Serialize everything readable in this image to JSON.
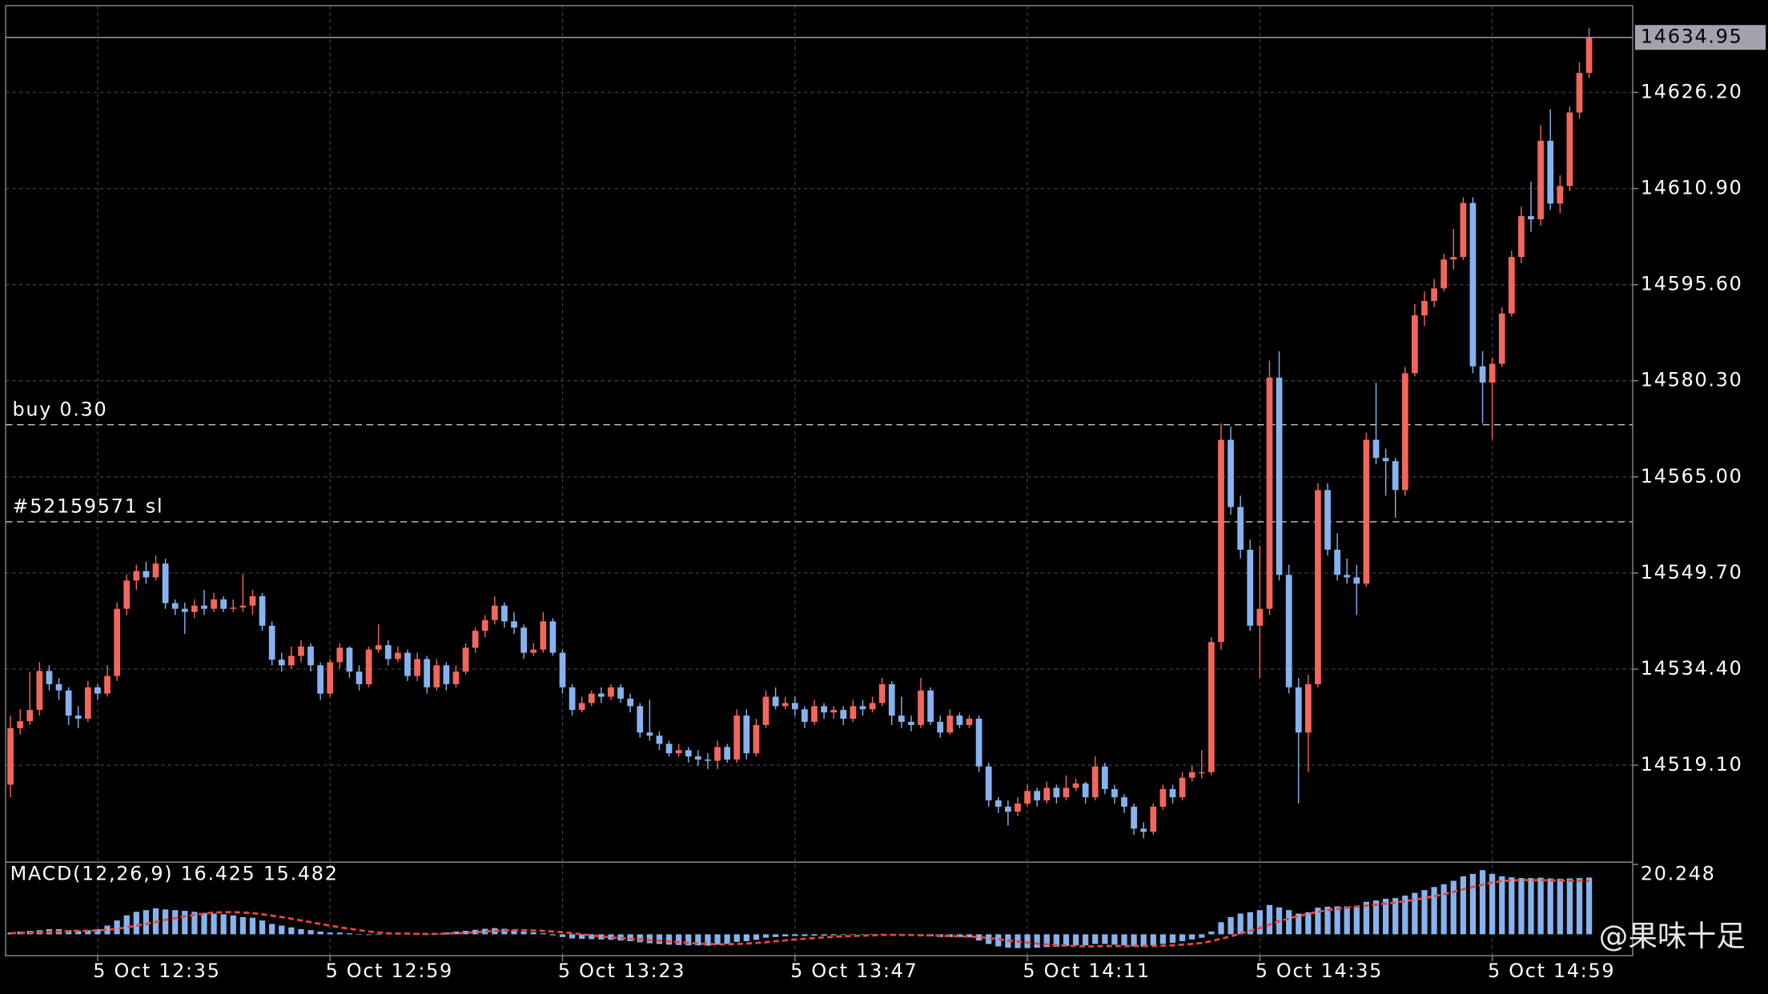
{
  "chart_data": {
    "type": "candlestick",
    "up_color": "#f2665c",
    "down_color": "#86b3ee",
    "grid": true,
    "xlim": [
      -0.5,
      167.5
    ],
    "xticks": [
      {
        "value": 9,
        "label": "5 Oct 12:35"
      },
      {
        "value": 33,
        "label": "5 Oct 12:59"
      },
      {
        "value": 57,
        "label": "5 Oct 13:23"
      },
      {
        "value": 81,
        "label": "5 Oct 13:47"
      },
      {
        "value": 105,
        "label": "5 Oct 14:11"
      },
      {
        "value": 129,
        "label": "5 Oct 14:35"
      },
      {
        "value": 153,
        "label": "5 Oct 14:59"
      }
    ],
    "ylim": [
      14503.67,
      14640.01
    ],
    "yticks": [
      {
        "value": 14519.1,
        "label": "14519.10"
      },
      {
        "value": 14534.4,
        "label": "14534.40"
      },
      {
        "value": 14549.7,
        "label": "14549.70"
      },
      {
        "value": 14565,
        "label": "14565.00"
      },
      {
        "value": 14580.3,
        "label": "14580.30"
      },
      {
        "value": 14595.6,
        "label": "14595.60"
      },
      {
        "value": 14610.9,
        "label": "14610.90"
      },
      {
        "value": 14626.2,
        "label": "14626.20"
      }
    ],
    "levels": [
      {
        "label": "buy 0.30",
        "value": 14573.3
      },
      {
        "label": "#52159571 sl",
        "value": 14557.85
      }
    ],
    "ohlc": [
      [
        14516.0,
        14527.0,
        14514.0,
        14525.0
      ],
      [
        14525.0,
        14528.0,
        14524.0,
        14526.1
      ],
      [
        14526.1,
        14534.0,
        14525.5,
        14527.9
      ],
      [
        14527.9,
        14535.5,
        14527.0,
        14534.1
      ],
      [
        14534.1,
        14535.0,
        14531.0,
        14532.0
      ],
      [
        14532.0,
        14533.0,
        14529.5,
        14531.0
      ],
      [
        14531.0,
        14531.5,
        14525.5,
        14527.0
      ],
      [
        14527.0,
        14528.5,
        14525.0,
        14526.5
      ],
      [
        14526.5,
        14532.5,
        14526.0,
        14531.5
      ],
      [
        14531.5,
        14532.0,
        14529.5,
        14530.5
      ],
      [
        14530.5,
        14535.0,
        14530.0,
        14533.3
      ],
      [
        14533.3,
        14545.0,
        14532.5,
        14544.0
      ],
      [
        14544.0,
        14549.5,
        14543.0,
        14548.5
      ],
      [
        14548.5,
        14551.0,
        14547.0,
        14550.0
      ],
      [
        14550.0,
        14551.5,
        14548.0,
        14549.0
      ],
      [
        14549.0,
        14552.5,
        14548.5,
        14551.2
      ],
      [
        14551.2,
        14552.0,
        14544.0,
        14544.9
      ],
      [
        14544.9,
        14545.5,
        14543.0,
        14544.0
      ],
      [
        14544.0,
        14545.0,
        14540.0,
        14543.5
      ],
      [
        14543.5,
        14545.5,
        14542.5,
        14544.5
      ],
      [
        14544.5,
        14547.0,
        14543.0,
        14544.0
      ],
      [
        14544.0,
        14546.5,
        14543.5,
        14545.5
      ],
      [
        14545.5,
        14546.0,
        14543.5,
        14544.0
      ],
      [
        14544.0,
        14545.5,
        14543.5,
        14544.2
      ],
      [
        14544.2,
        14549.5,
        14543.5,
        14544.5
      ],
      [
        14544.5,
        14547.0,
        14543.0,
        14546.0
      ],
      [
        14546.0,
        14546.5,
        14540.5,
        14541.3
      ],
      [
        14541.3,
        14542.0,
        14535.0,
        14535.9
      ],
      [
        14535.9,
        14537.0,
        14534.0,
        14535.0
      ],
      [
        14535.0,
        14538.0,
        14534.5,
        14536.5
      ],
      [
        14536.5,
        14539.0,
        14535.5,
        14538.0
      ],
      [
        14538.0,
        14538.5,
        14534.0,
        14535.0
      ],
      [
        14535.0,
        14535.5,
        14529.5,
        14530.5
      ],
      [
        14530.5,
        14536.0,
        14530.0,
        14535.5
      ],
      [
        14535.5,
        14538.5,
        14534.5,
        14537.8
      ],
      [
        14537.8,
        14538.0,
        14533.0,
        14534.0
      ],
      [
        14534.0,
        14535.0,
        14531.0,
        14532.0
      ],
      [
        14532.0,
        14538.0,
        14531.5,
        14537.5
      ],
      [
        14537.5,
        14541.5,
        14537.0,
        14538.2
      ],
      [
        14538.2,
        14539.0,
        14535.0,
        14536.0
      ],
      [
        14536.0,
        14538.0,
        14535.5,
        14537.0
      ],
      [
        14537.0,
        14537.5,
        14532.5,
        14533.3
      ],
      [
        14533.3,
        14537.0,
        14532.5,
        14536.0
      ],
      [
        14536.0,
        14536.5,
        14530.5,
        14531.5
      ],
      [
        14531.5,
        14536.0,
        14531.0,
        14535.0
      ],
      [
        14535.0,
        14535.5,
        14531.0,
        14532.0
      ],
      [
        14532.0,
        14535.0,
        14531.5,
        14534.0
      ],
      [
        14534.0,
        14538.5,
        14533.5,
        14537.8
      ],
      [
        14537.8,
        14541.0,
        14537.0,
        14540.5
      ],
      [
        14540.5,
        14543.0,
        14539.5,
        14542.2
      ],
      [
        14542.2,
        14546.0,
        14541.5,
        14544.5
      ],
      [
        14544.5,
        14545.0,
        14541.0,
        14542.0
      ],
      [
        14542.0,
        14543.5,
        14540.0,
        14541.0
      ],
      [
        14541.0,
        14541.5,
        14536.0,
        14537.0
      ],
      [
        14537.0,
        14538.5,
        14536.5,
        14537.5
      ],
      [
        14537.5,
        14543.5,
        14537.0,
        14542.0
      ],
      [
        14542.0,
        14542.5,
        14536.5,
        14537.0
      ],
      [
        14537.0,
        14537.5,
        14530.5,
        14531.5
      ],
      [
        14531.5,
        14532.0,
        14527.0,
        14527.9
      ],
      [
        14527.9,
        14530.0,
        14527.5,
        14529.0
      ],
      [
        14529.0,
        14531.0,
        14528.5,
        14530.5
      ],
      [
        14530.5,
        14531.5,
        14529.0,
        14530.0
      ],
      [
        14530.0,
        14532.0,
        14529.5,
        14531.5
      ],
      [
        14531.5,
        14532.0,
        14529.0,
        14529.7
      ],
      [
        14529.7,
        14530.5,
        14527.5,
        14528.5
      ],
      [
        14528.5,
        14529.0,
        14523.5,
        14524.3
      ],
      [
        14524.3,
        14529.5,
        14523.0,
        14523.8
      ],
      [
        14523.8,
        14524.5,
        14521.5,
        14522.5
      ],
      [
        14522.5,
        14523.0,
        14520.5,
        14521.0
      ],
      [
        14521.0,
        14522.5,
        14520.5,
        14521.5
      ],
      [
        14521.5,
        14522.0,
        14519.5,
        14520.5
      ],
      [
        14520.5,
        14521.5,
        14519.0,
        14520.0
      ],
      [
        14520.0,
        14521.0,
        14518.5,
        14519.8
      ],
      [
        14519.8,
        14523.0,
        14518.5,
        14522.0
      ],
      [
        14522.0,
        14522.5,
        14519.5,
        14520.0
      ],
      [
        14520.0,
        14528.0,
        14519.5,
        14527.0
      ],
      [
        14527.0,
        14528.0,
        14520.0,
        14521.0
      ],
      [
        14521.0,
        14526.5,
        14520.5,
        14525.5
      ],
      [
        14525.5,
        14531.0,
        14525.0,
        14530.0
      ],
      [
        14530.0,
        14531.5,
        14528.0,
        14528.5
      ],
      [
        14528.5,
        14530.0,
        14528.0,
        14529.0
      ],
      [
        14529.0,
        14530.0,
        14527.0,
        14528.0
      ],
      [
        14528.0,
        14528.5,
        14525.0,
        14526.0
      ],
      [
        14526.0,
        14529.5,
        14525.5,
        14528.5
      ],
      [
        14528.5,
        14529.0,
        14526.5,
        14527.5
      ],
      [
        14527.5,
        14528.5,
        14526.5,
        14527.9
      ],
      [
        14527.9,
        14528.5,
        14525.5,
        14526.5
      ],
      [
        14526.5,
        14529.5,
        14526.0,
        14528.5
      ],
      [
        14528.5,
        14529.5,
        14527.0,
        14528.0
      ],
      [
        14528.0,
        14530.0,
        14527.5,
        14529.0
      ],
      [
        14529.0,
        14533.0,
        14528.5,
        14532.0
      ],
      [
        14532.0,
        14532.5,
        14525.5,
        14527.0
      ],
      [
        14527.0,
        14530.0,
        14525.0,
        14526.0
      ],
      [
        14526.0,
        14527.0,
        14524.5,
        14525.5
      ],
      [
        14525.5,
        14533.0,
        14525.0,
        14531.0
      ],
      [
        14531.0,
        14531.5,
        14525.5,
        14526.0
      ],
      [
        14526.0,
        14527.0,
        14523.5,
        14524.3
      ],
      [
        14524.3,
        14528.0,
        14524.0,
        14527.0
      ],
      [
        14527.0,
        14527.5,
        14525.0,
        14525.5
      ],
      [
        14525.5,
        14527.0,
        14525.0,
        14526.5
      ],
      [
        14526.5,
        14527.0,
        14518.0,
        14518.9
      ],
      [
        14518.9,
        14519.5,
        14512.5,
        14513.5
      ],
      [
        14513.5,
        14514.0,
        14511.5,
        14512.5
      ],
      [
        14512.5,
        14513.5,
        14509.5,
        14511.7
      ],
      [
        14511.7,
        14514.0,
        14511.0,
        14513.0
      ],
      [
        14513.0,
        14516.0,
        14512.5,
        14515.0
      ],
      [
        14515.0,
        14515.5,
        14512.5,
        14513.5
      ],
      [
        14513.5,
        14516.5,
        14513.0,
        14515.5
      ],
      [
        14515.5,
        14516.0,
        14513.0,
        14514.0
      ],
      [
        14514.0,
        14517.5,
        14513.5,
        14515.5
      ],
      [
        14515.5,
        14517.0,
        14515.0,
        14516.2
      ],
      [
        14516.2,
        14516.5,
        14513.0,
        14514.0
      ],
      [
        14514.0,
        14520.5,
        14513.5,
        14518.9
      ],
      [
        14518.9,
        14519.5,
        14514.5,
        14515.3
      ],
      [
        14515.3,
        14516.0,
        14513.0,
        14514.0
      ],
      [
        14514.0,
        14514.5,
        14511.5,
        14512.5
      ],
      [
        14512.5,
        14513.0,
        14508.0,
        14509.0
      ],
      [
        14509.0,
        14510.0,
        14507.5,
        14508.5
      ],
      [
        14508.5,
        14513.0,
        14508.0,
        14512.5
      ],
      [
        14512.5,
        14516.0,
        14512.0,
        14515.3
      ],
      [
        14515.3,
        14516.0,
        14513.0,
        14514.0
      ],
      [
        14514.0,
        14518.0,
        14513.5,
        14517.1
      ],
      [
        14517.1,
        14519.0,
        14516.5,
        14518.0
      ],
      [
        14518.0,
        14521.5,
        14517.0,
        14518.0
      ],
      [
        14518.0,
        14539.5,
        14517.5,
        14538.7
      ],
      [
        14538.7,
        14573.5,
        14537.5,
        14570.9
      ],
      [
        14570.9,
        14573.0,
        14559.0,
        14560.2
      ],
      [
        14560.2,
        14562.0,
        14552.0,
        14553.4
      ],
      [
        14553.4,
        14555.0,
        14540.5,
        14541.3
      ],
      [
        14541.3,
        14554.0,
        14533.0,
        14544.0
      ],
      [
        14544.0,
        14583.5,
        14543.0,
        14580.8
      ],
      [
        14580.8,
        14585.0,
        14548.5,
        14549.4
      ],
      [
        14549.4,
        14551.0,
        14530.5,
        14531.5
      ],
      [
        14531.5,
        14533.0,
        14513.0,
        14524.3
      ],
      [
        14524.3,
        14533.5,
        14518.0,
        14532.0
      ],
      [
        14532.0,
        14564.0,
        14531.5,
        14562.9
      ],
      [
        14562.9,
        14564.0,
        14552.5,
        14553.4
      ],
      [
        14553.4,
        14556.0,
        14548.5,
        14549.4
      ],
      [
        14549.4,
        14552.0,
        14548.0,
        14549.0
      ],
      [
        14549.0,
        14551.0,
        14543.0,
        14548.0
      ],
      [
        14548.0,
        14572.0,
        14547.5,
        14570.9
      ],
      [
        14570.9,
        14580.0,
        14567.0,
        14568.0
      ],
      [
        14568.0,
        14569.5,
        14562.0,
        14567.5
      ],
      [
        14567.5,
        14568.0,
        14558.5,
        14562.9
      ],
      [
        14562.9,
        14582.5,
        14562.0,
        14581.5
      ],
      [
        14581.5,
        14592.5,
        14581.0,
        14590.7
      ],
      [
        14590.7,
        14594.5,
        14589.0,
        14593.0
      ],
      [
        14593.0,
        14596.5,
        14592.0,
        14595.0
      ],
      [
        14595.0,
        14600.5,
        14594.5,
        14599.6
      ],
      [
        14599.6,
        14604.5,
        14598.0,
        14600.0
      ],
      [
        14600.0,
        14609.5,
        14599.5,
        14608.6
      ],
      [
        14608.6,
        14609.5,
        14581.5,
        14582.6
      ],
      [
        14582.6,
        14585.0,
        14573.5,
        14580.0
      ],
      [
        14580.0,
        14584.0,
        14571.0,
        14583.0
      ],
      [
        14583.0,
        14592.0,
        14582.5,
        14591.0
      ],
      [
        14591.0,
        14601.0,
        14590.5,
        14600.0
      ],
      [
        14600.0,
        14608.0,
        14599.0,
        14606.5
      ],
      [
        14606.5,
        14612.0,
        14604.0,
        14606.0
      ],
      [
        14606.0,
        14621.0,
        14605.0,
        14618.5
      ],
      [
        14618.5,
        14623.5,
        14607.5,
        14608.5
      ],
      [
        14608.5,
        14613.0,
        14607.0,
        14611.3
      ],
      [
        14611.3,
        14624.0,
        14610.5,
        14623.0
      ],
      [
        14623.0,
        14631.0,
        14622.0,
        14629.3
      ],
      [
        14629.3,
        14636.5,
        14628.5,
        14634.95
      ]
    ],
    "macd": {
      "type": "macd",
      "name": "MACD(12,26,9)",
      "hist_color": "#86b3ee",
      "signal_color": "#e8453b",
      "ylim": [
        -6.2,
        20.248
      ],
      "yticks": [
        20.248
      ],
      "histogram": [
        0.5,
        0.8,
        1,
        1.2,
        1.5,
        1.5,
        1.2,
        1,
        1.2,
        1.5,
        2.5,
        4,
        5.5,
        6.5,
        7,
        7.5,
        7.2,
        7,
        6.8,
        6.5,
        6.2,
        6,
        5.8,
        5.5,
        5,
        4.8,
        4,
        3,
        2.5,
        2,
        1.5,
        1.2,
        0.8,
        0.5,
        0.5,
        0.3,
        0,
        -0.2,
        0,
        0.2,
        0.3,
        0.2,
        0.3,
        0,
        0.2,
        0.5,
        0.8,
        1,
        1.3,
        1.6,
        1.8,
        1.6,
        1.2,
        0.8,
        0.6,
        0.3,
        -0.3,
        -0.8,
        -1.2,
        -1.3,
        -1.4,
        -1.5,
        -1.6,
        -1.8,
        -2,
        -2.3,
        -2.6,
        -2.8,
        -3,
        -3.1,
        -3.2,
        -3.2,
        -3.3,
        -3,
        -2.8,
        -2.2,
        -2,
        -1.6,
        -1,
        -0.8,
        -0.6,
        -0.5,
        -0.5,
        -0.4,
        -0.4,
        -0.3,
        -0.2,
        -0.2,
        -0.1,
        0,
        0.1,
        0.1,
        -0.2,
        -0.5,
        -0.4,
        -0.6,
        -0.8,
        -0.8,
        -0.8,
        -0.9,
        -1.8,
        -2.8,
        -3.5,
        -3.9,
        -4,
        -4,
        -3.9,
        -3.7,
        -3.6,
        -3.4,
        -3.2,
        -3.2,
        -2.8,
        -2.8,
        -3,
        -3.2,
        -3.5,
        -3.6,
        -3.2,
        -2.8,
        -2.5,
        -2,
        -1.5,
        -1,
        0.8,
        3.5,
        5,
        6,
        6.4,
        7,
        8.5,
        7.8,
        7,
        6,
        6.4,
        7.7,
        8,
        8.1,
        8.1,
        8.2,
        9.4,
        9.8,
        10.3,
        10.5,
        11.2,
        12,
        12.8,
        13.7,
        14.5,
        15.5,
        16.8,
        17.5,
        18.6,
        17.5,
        16.8,
        16.5,
        16.3,
        16.3,
        16.4,
        16.2,
        16.1,
        16.2,
        16.3,
        16.425
      ],
      "signal": [
        0.3,
        0.4,
        0.5,
        0.6,
        0.7,
        0.8,
        0.9,
        1.0,
        1.0,
        1.1,
        1.3,
        1.6,
        2.0,
        2.5,
        3.0,
        3.6,
        4.2,
        4.7,
        5.2,
        5.6,
        6.0,
        6.3,
        6.4,
        6.4,
        6.3,
        6.1,
        5.8,
        5.4,
        5.0,
        4.5,
        4.0,
        3.5,
        3.0,
        2.5,
        2.0,
        1.6,
        1.2,
        0.8,
        0.5,
        0.3,
        0.2,
        0.2,
        0.1,
        0.1,
        0.1,
        0.2,
        0.3,
        0.4,
        0.6,
        0.8,
        1.0,
        1.1,
        1.2,
        1.2,
        1.1,
        1.0,
        0.8,
        0.6,
        0.3,
        0.0,
        -0.3,
        -0.6,
        -0.9,
        -1.1,
        -1.3,
        -1.5,
        -1.7,
        -1.9,
        -2.1,
        -2.3,
        -2.5,
        -2.7,
        -2.8,
        -2.9,
        -2.9,
        -2.8,
        -2.7,
        -2.5,
        -2.3,
        -2.0,
        -1.8,
        -1.5,
        -1.3,
        -1.1,
        -0.9,
        -0.7,
        -0.6,
        -0.5,
        -0.4,
        -0.3,
        -0.2,
        -0.2,
        -0.2,
        -0.2,
        -0.3,
        -0.3,
        -0.4,
        -0.5,
        -0.6,
        -0.6,
        -0.8,
        -1.1,
        -1.4,
        -1.8,
        -2.1,
        -2.4,
        -2.7,
        -2.9,
        -3.1,
        -3.3,
        -3.4,
        -3.5,
        -3.5,
        -3.4,
        -3.4,
        -3.4,
        -3.4,
        -3.4,
        -3.4,
        -3.3,
        -3.2,
        -3.0,
        -2.8,
        -2.5,
        -2.0,
        -1.3,
        -0.6,
        0.2,
        1.0,
        1.8,
        2.8,
        3.8,
        4.6,
        5.3,
        5.9,
        6.5,
        7.0,
        7.4,
        7.7,
        8.0,
        8.3,
        8.6,
        8.9,
        9.2,
        9.6,
        10.0,
        10.5,
        11.0,
        11.6,
        12.3,
        13.0,
        13.7,
        14.4,
        15.0,
        15.4,
        15.6,
        15.7,
        15.7,
        15.7,
        15.6,
        15.6,
        15.5,
        15.5,
        15.482
      ]
    }
  },
  "watermark": "@果味十足"
}
